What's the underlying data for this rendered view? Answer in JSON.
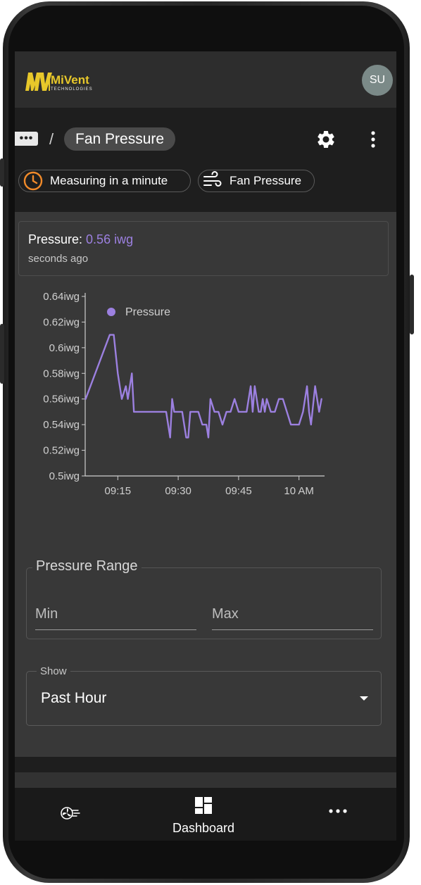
{
  "app": {
    "logo_text": "MiVent",
    "logo_sub": "TECHNOLOGIES",
    "avatar_initials": "SU"
  },
  "breadcrumb": {
    "more_label": "•••",
    "separator": "/",
    "current": "Fan Pressure"
  },
  "chips": {
    "measuring": "Measuring in a minute",
    "fan": "Fan Pressure"
  },
  "pressure": {
    "label": "Pressure:",
    "value": "0.56 iwg",
    "time": "seconds ago"
  },
  "chart_data": {
    "type": "line",
    "legend": "Pressure",
    "legend_placement": "top-left",
    "color": "#9c80e0",
    "y_ticks": [
      "0.64iwg",
      "0.62iwg",
      "0.6iwg",
      "0.58iwg",
      "0.56iwg",
      "0.54iwg",
      "0.52iwg",
      "0.5iwg"
    ],
    "ylim": [
      0.5,
      0.64
    ],
    "x_ticks": [
      {
        "label": "09:15",
        "t": 15
      },
      {
        "label": "09:30",
        "t": 30
      },
      {
        "label": "09:45",
        "t": 45
      },
      {
        "label": "10 AM",
        "t": 60
      }
    ],
    "xlim": [
      6.9,
      66
    ],
    "series": [
      {
        "name": "Pressure",
        "t": [
          7,
          13,
          14,
          15,
          16,
          17,
          17.5,
          18.5,
          19,
          19.5,
          20,
          21,
          22,
          23,
          24,
          25,
          26,
          26.5,
          27,
          28,
          28.5,
          29,
          30,
          31,
          32,
          32.5,
          33,
          34,
          35,
          36,
          37,
          37.5,
          38,
          39,
          40,
          41,
          42,
          43,
          44,
          45,
          46,
          47,
          48,
          48.5,
          49,
          50,
          50.5,
          51,
          51.5,
          52,
          53,
          54,
          55,
          56,
          57,
          58,
          59,
          60,
          61,
          62,
          62.5,
          63,
          64,
          65,
          65.6
        ],
        "y": [
          0.56,
          0.61,
          0.61,
          0.58,
          0.56,
          0.57,
          0.56,
          0.58,
          0.55,
          0.55,
          0.55,
          0.55,
          0.55,
          0.55,
          0.55,
          0.55,
          0.55,
          0.55,
          0.55,
          0.53,
          0.56,
          0.55,
          0.55,
          0.55,
          0.53,
          0.53,
          0.55,
          0.55,
          0.55,
          0.54,
          0.54,
          0.53,
          0.56,
          0.55,
          0.55,
          0.54,
          0.55,
          0.55,
          0.56,
          0.55,
          0.55,
          0.55,
          0.57,
          0.55,
          0.57,
          0.55,
          0.55,
          0.56,
          0.55,
          0.56,
          0.55,
          0.55,
          0.56,
          0.56,
          0.55,
          0.54,
          0.54,
          0.54,
          0.55,
          0.57,
          0.55,
          0.54,
          0.57,
          0.55,
          0.56
        ]
      }
    ]
  },
  "range": {
    "title": "Pressure Range",
    "min_label": "Min",
    "max_label": "Max"
  },
  "show": {
    "label": "Show",
    "value": "Past Hour"
  },
  "nav": {
    "dashboard": "Dashboard"
  }
}
